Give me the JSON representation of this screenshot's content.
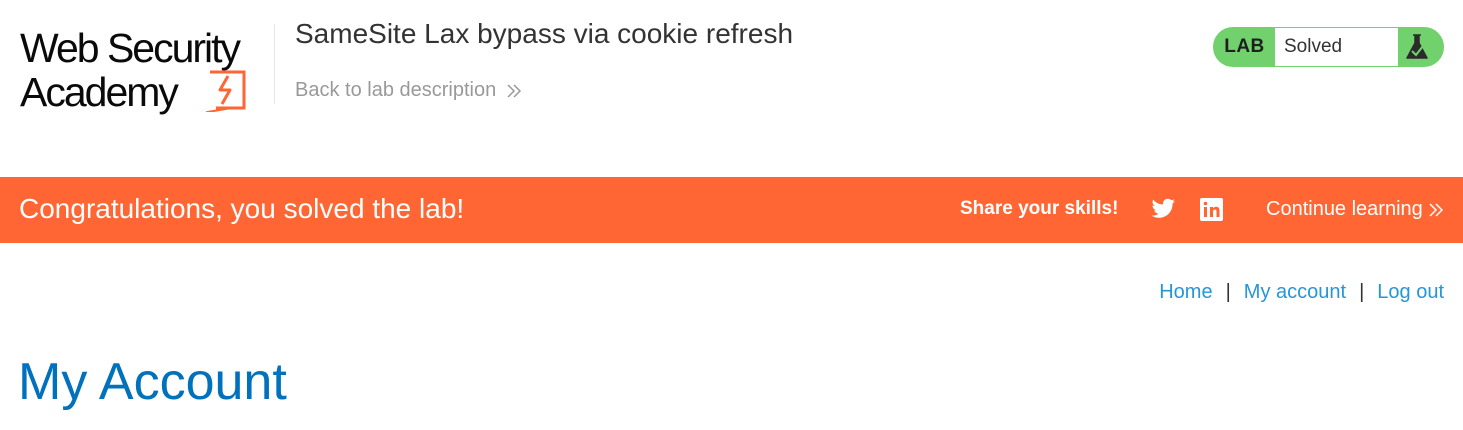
{
  "header": {
    "logo": {
      "line1": "Web Security",
      "line2": "Academy"
    },
    "lab_title": "SameSite Lax bypass via cookie refresh",
    "back_link": "Back to lab description",
    "status": {
      "tag": "LAB",
      "text": "Solved",
      "color": "#70d16d"
    }
  },
  "banner": {
    "message": "Congratulations, you solved the lab!",
    "share_label": "Share your skills!",
    "icons": [
      "twitter-icon",
      "linkedin-icon"
    ],
    "continue_label": "Continue learning",
    "color": "#ff6633"
  },
  "nav": {
    "items": [
      {
        "label": "Home"
      },
      {
        "label": "My account"
      },
      {
        "label": "Log out"
      }
    ],
    "separator": "|"
  },
  "main": {
    "heading": "My Account"
  }
}
